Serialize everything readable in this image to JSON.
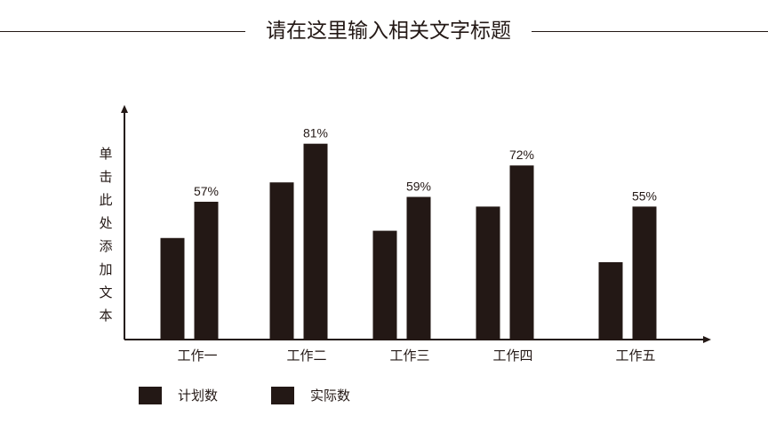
{
  "page": {
    "title": "请在这里输入相关文字标题"
  },
  "colors": {
    "bar": "#231815",
    "axis": "#231815",
    "background": "#ffffff"
  },
  "chart_data": {
    "type": "bar",
    "title": "",
    "ylabel": "单击此处添加文本",
    "xlabel": "",
    "categories": [
      "工作一",
      "工作二",
      "工作三",
      "工作四",
      "工作五"
    ],
    "series": [
      {
        "name": "计划数",
        "values": [
          42,
          65,
          45,
          55,
          32
        ]
      },
      {
        "name": "实际数",
        "values": [
          57,
          81,
          59,
          72,
          55
        ]
      }
    ],
    "data_labels": [
      "57%",
      "81%",
      "59%",
      "72%",
      "55%"
    ],
    "ylim": [
      0,
      100
    ],
    "grid": false,
    "legend": "bottom-left"
  }
}
